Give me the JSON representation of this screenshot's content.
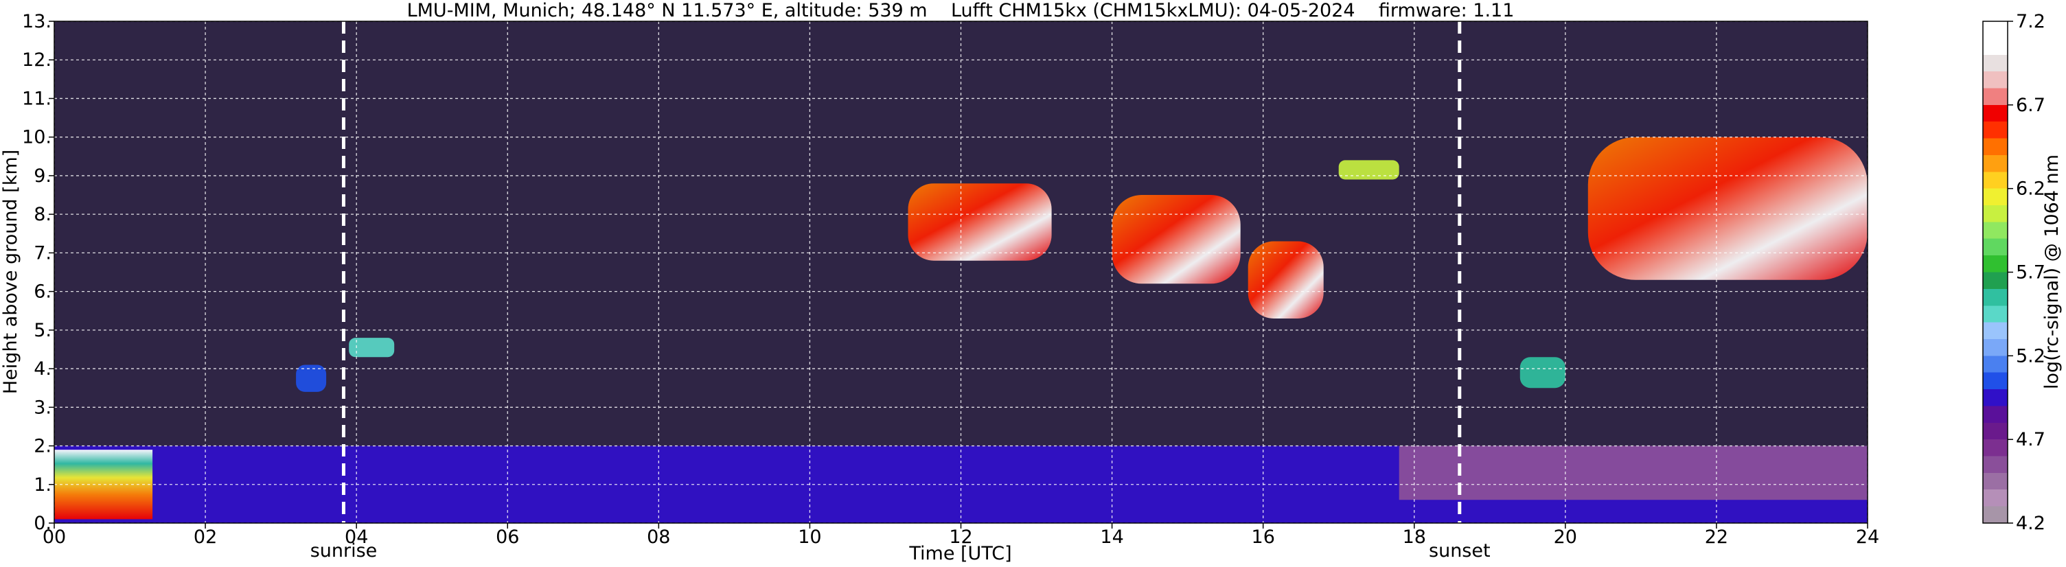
{
  "chart_data": {
    "type": "heatmap",
    "title": "LMU-MIM, Munich; 48.148° N 11.573° E, altitude: 539 m    Lufft CHM15kx (CHM15kxLMU): 04-05-2024    firmware: 1.11",
    "xlabel": "Time [UTC]",
    "ylabel": "Height above ground [km]",
    "xlim": [
      0,
      24
    ],
    "ylim": [
      0,
      13
    ],
    "x_ticks": [
      0,
      2,
      4,
      6,
      8,
      10,
      12,
      14,
      16,
      18,
      20,
      22,
      24
    ],
    "x_tick_labels": [
      "00",
      "02",
      "04",
      "06",
      "08",
      "10",
      "12",
      "14",
      "16",
      "18",
      "20",
      "22",
      "24"
    ],
    "y_ticks": [
      0,
      1,
      2,
      3,
      4,
      5,
      6,
      7,
      8,
      9,
      10,
      11,
      12,
      13
    ],
    "y_tick_labels": [
      "0.",
      "1.",
      "2.",
      "3.",
      "4.",
      "5.",
      "6.",
      "7.",
      "8.",
      "9.",
      "10.",
      "11.",
      "12.",
      "13."
    ],
    "grid": true,
    "colorbar": {
      "label": "log(rc-signal) @ 1064 nm",
      "range": [
        4.2,
        7.2
      ],
      "ticks": [
        4.2,
        4.7,
        5.2,
        5.7,
        6.2,
        6.7,
        7.2
      ],
      "tick_labels": [
        "4.2",
        "4.7",
        "5.2",
        "5.7",
        "6.2",
        "6.7",
        "7.2"
      ],
      "colors": [
        "#a795a8",
        "#b58fb8",
        "#9b6fa4",
        "#8a4f9a",
        "#7c2f90",
        "#6a1a8c",
        "#5a109a",
        "#3010c8",
        "#2050e8",
        "#4a80f0",
        "#7aa8f8",
        "#9ac4fc",
        "#5ad8c8",
        "#30c0a0",
        "#20a050",
        "#30c030",
        "#60d860",
        "#90e860",
        "#c8f040",
        "#f0f030",
        "#ffd020",
        "#ffa010",
        "#ff7000",
        "#ff3000",
        "#f00000",
        "#f08080",
        "#f0c0c0",
        "#e8e0e0",
        "#ffffff",
        "#ffffff"
      ]
    },
    "markers": [
      {
        "label": "sunrise",
        "x": 3.83
      },
      {
        "label": "sunset",
        "x": 18.6
      }
    ],
    "features": [
      {
        "kind": "boundary_layer",
        "x": [
          0,
          24
        ],
        "y_range": [
          0,
          2.0
        ],
        "level": 5.0
      },
      {
        "kind": "morning_fog_layer",
        "x": [
          0,
          1.3
        ],
        "y_range": [
          0.1,
          1.9
        ],
        "level": 6.4
      },
      {
        "kind": "aerosol_layer",
        "x": [
          17.8,
          24
        ],
        "y_range": [
          0.6,
          2.0
        ],
        "level": 4.6
      },
      {
        "kind": "cloud",
        "x": [
          11.3,
          13.2
        ],
        "y_range": [
          6.8,
          8.8
        ],
        "level": 6.4
      },
      {
        "kind": "cloud",
        "x": [
          14.0,
          15.7
        ],
        "y_range": [
          6.2,
          8.5
        ],
        "level": 6.3
      },
      {
        "kind": "cloud",
        "x": [
          15.8,
          16.8
        ],
        "y_range": [
          5.3,
          7.3
        ],
        "level": 6.6
      },
      {
        "kind": "cloud",
        "x": [
          17.0,
          17.8
        ],
        "y_range": [
          8.9,
          9.4
        ],
        "level": 6.0
      },
      {
        "kind": "cloud",
        "x": [
          20.3,
          24
        ],
        "y_range": [
          6.3,
          10.0
        ],
        "level": 6.5
      },
      {
        "kind": "cloud",
        "x": [
          19.4,
          20.0
        ],
        "y_range": [
          3.5,
          4.3
        ],
        "level": 5.6
      },
      {
        "kind": "cloud",
        "x": [
          3.2,
          3.6
        ],
        "y_range": [
          3.4,
          4.1
        ],
        "level": 5.1
      },
      {
        "kind": "cloud",
        "x": [
          3.9,
          4.5
        ],
        "y_range": [
          4.3,
          4.8
        ],
        "level": 5.4
      }
    ]
  }
}
